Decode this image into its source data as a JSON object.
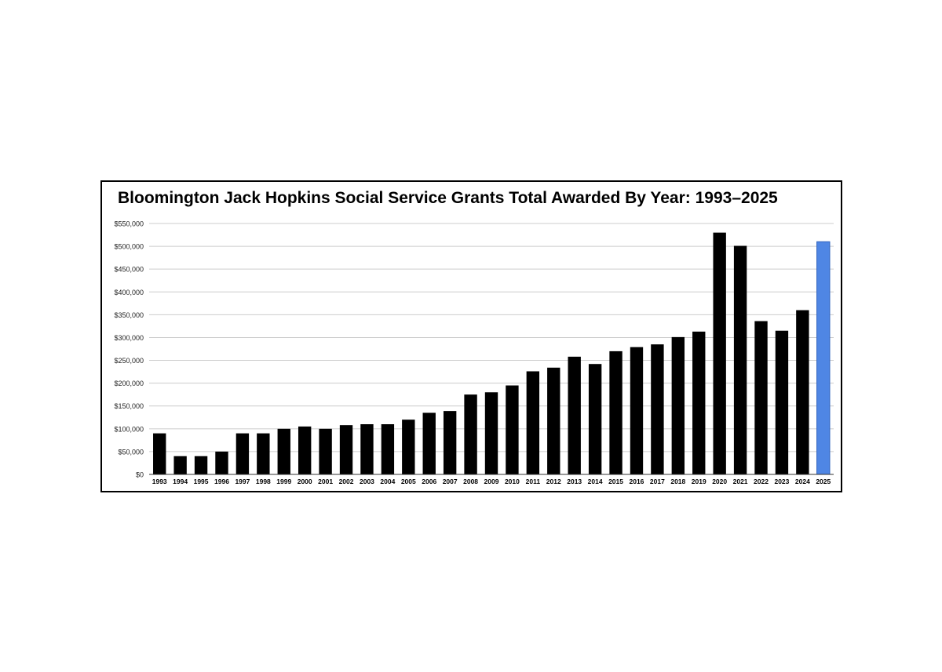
{
  "chart_data": {
    "type": "bar",
    "title": "Bloomington Jack Hopkins Social Service Grants Total Awarded By Year: 1993–2025",
    "xlabel": "",
    "ylabel": "",
    "ylim": [
      0,
      550000
    ],
    "yticks": [
      0,
      50000,
      100000,
      150000,
      200000,
      250000,
      300000,
      350000,
      400000,
      450000,
      500000,
      550000
    ],
    "ytick_labels": [
      "$0",
      "$50,000",
      "$100,000",
      "$150,000",
      "$200,000",
      "$250,000",
      "$300,000",
      "$350,000",
      "$400,000",
      "$450,000",
      "$500,000",
      "$550,000"
    ],
    "grid": true,
    "legend": "none",
    "categories": [
      "1993",
      "1994",
      "1995",
      "1996",
      "1997",
      "1998",
      "1999",
      "2000",
      "2001",
      "2002",
      "2003",
      "2004",
      "2005",
      "2006",
      "2007",
      "2008",
      "2009",
      "2010",
      "2011",
      "2012",
      "2013",
      "2014",
      "2015",
      "2016",
      "2017",
      "2018",
      "2019",
      "2020",
      "2021",
      "2022",
      "2023",
      "2024",
      "2025"
    ],
    "values": [
      90000,
      40000,
      40000,
      50000,
      90000,
      90000,
      100000,
      105000,
      100000,
      108000,
      110000,
      110000,
      120000,
      135000,
      139000,
      175000,
      180000,
      195000,
      226000,
      234000,
      258000,
      242000,
      270000,
      279000,
      285000,
      301000,
      313000,
      530000,
      501000,
      336000,
      315000,
      360000,
      510000
    ],
    "colors": {
      "bar": "#000000",
      "highlight": "#4f86e4",
      "highlight_edge": "#2f62bd",
      "grid": "#cccccc"
    },
    "highlight_category": "2025"
  }
}
